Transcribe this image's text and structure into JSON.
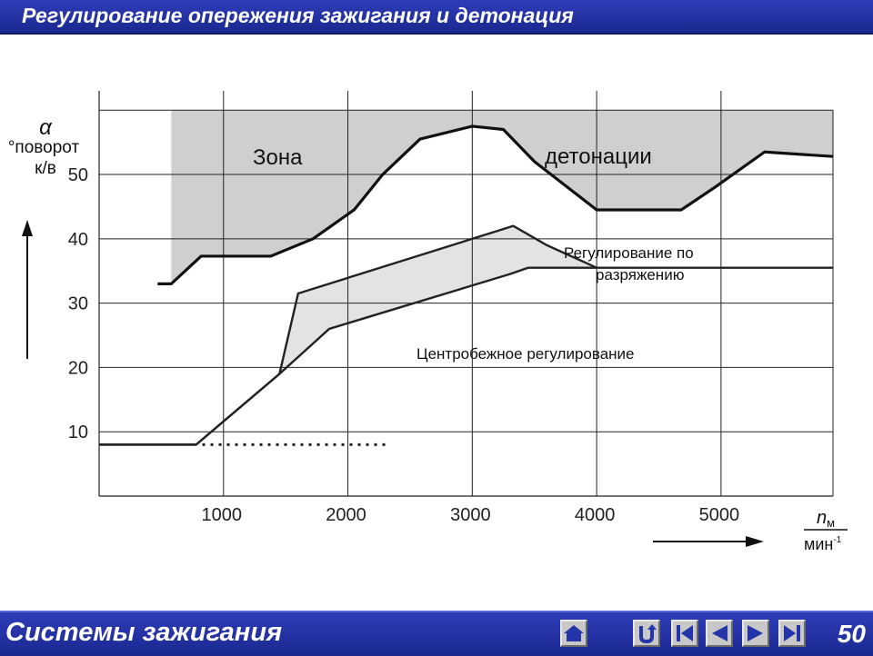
{
  "header": {
    "title": "Регулирование опережения зажигания и детонация"
  },
  "footer": {
    "section": "Системы зажигания",
    "page": "50"
  },
  "nav": {
    "icons": [
      "home-icon",
      "return-icon",
      "first-icon",
      "prev-icon",
      "next-icon",
      "last-icon"
    ]
  },
  "colors": {
    "bar": "#2335a8",
    "zone_fill": "#cfcfcf",
    "band_fill": "#e3e3e3",
    "grid": "#222222"
  },
  "chart_data": {
    "type": "line",
    "title": "",
    "y_axis": {
      "symbol": "α",
      "label_line1": "°поворот",
      "label_line2": "к/в",
      "ticks": [
        10,
        20,
        30,
        40,
        50
      ]
    },
    "x_axis": {
      "symbol": "n",
      "symbol_sub": "м",
      "unit": "мин",
      "unit_exp": "-1",
      "ticks": [
        1000,
        2000,
        3000,
        4000,
        5000
      ]
    },
    "xlim": [
      0,
      5900
    ],
    "ylim": [
      0,
      63
    ],
    "grid": true,
    "annotations": {
      "zone_left": "Зона",
      "zone_right": "детонации",
      "vacuum_line1": "Регулирование по",
      "vacuum_line2": "разряжению",
      "centrifugal": "Центробежное регулирование"
    },
    "series": [
      {
        "role": "detonation-boundary",
        "x": [
          470,
          580,
          820,
          1100,
          1380,
          1720,
          2050,
          2280,
          2580,
          3000,
          3250,
          3500,
          4000,
          4680,
          4950,
          5350,
          5900
        ],
        "y": [
          33,
          33,
          37.3,
          37.3,
          37.3,
          40,
          44.5,
          50,
          55.5,
          57.5,
          57,
          52,
          44.5,
          44.5,
          48,
          53.5,
          52.8
        ]
      },
      {
        "role": "vacuum-upper",
        "x": [
          0,
          780,
          1450,
          1600,
          3330,
          3600,
          4000
        ],
        "y": [
          8,
          8,
          19,
          31.5,
          42,
          39,
          35.5
        ]
      },
      {
        "role": "centrifugal",
        "x": [
          0,
          780,
          1450,
          1850,
          3300,
          3450,
          5900
        ],
        "y": [
          8,
          8,
          19,
          26,
          34.5,
          35.5,
          35.5
        ]
      },
      {
        "role": "without-regulation-dotted",
        "x": [
          830,
          2300
        ],
        "y": [
          8,
          8
        ]
      }
    ]
  }
}
